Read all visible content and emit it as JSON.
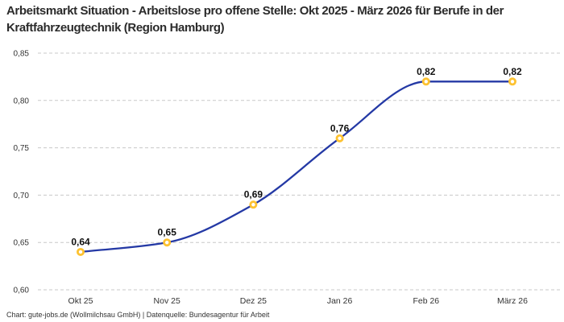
{
  "header": {
    "title": "Arbeitsmarkt Situation - Arbeitslose pro offene Stelle: Okt 2025 - März 2026 für Berufe in der Kraftfahrzeugtechnik (Region Hamburg)"
  },
  "footer": {
    "credit": "Chart: gute-jobs.de (Wollmilchsau GmbH) | Datenquelle: Bundesagentur für Arbeit"
  },
  "chart_data": {
    "type": "line",
    "title": "Arbeitsmarkt Situation - Arbeitslose pro offene Stelle: Okt 2025 - März 2026 für Berufe in der Kraftfahrzeugtechnik (Region Hamburg)",
    "categories": [
      "Okt 25",
      "Nov 25",
      "Dez 25",
      "Jan 26",
      "Feb 26",
      "März 26"
    ],
    "values": [
      0.64,
      0.65,
      0.69,
      0.76,
      0.82,
      0.82
    ],
    "point_labels": [
      "0,64",
      "0,65",
      "0,69",
      "0,76",
      "0,82",
      "0,82"
    ],
    "y_ticks": [
      0.85,
      0.8,
      0.75,
      0.7,
      0.65,
      0.6
    ],
    "y_tick_labels": [
      "0,85",
      "0,80",
      "0,75",
      "0,70",
      "0,65",
      "0,60"
    ],
    "ylim": [
      0.6,
      0.85
    ],
    "xlabel": "",
    "ylabel": "",
    "grid": "horizontal-dashed",
    "legend": "none",
    "curve": "monotone",
    "colors": {
      "line": "#2439a5",
      "marker_stroke": "#fdc231",
      "marker_fill": "#ffffff",
      "grid": "#c8c8c8",
      "title_text": "#2b2b2b",
      "axis_text": "#333333",
      "point_label_text": "#111111"
    }
  }
}
